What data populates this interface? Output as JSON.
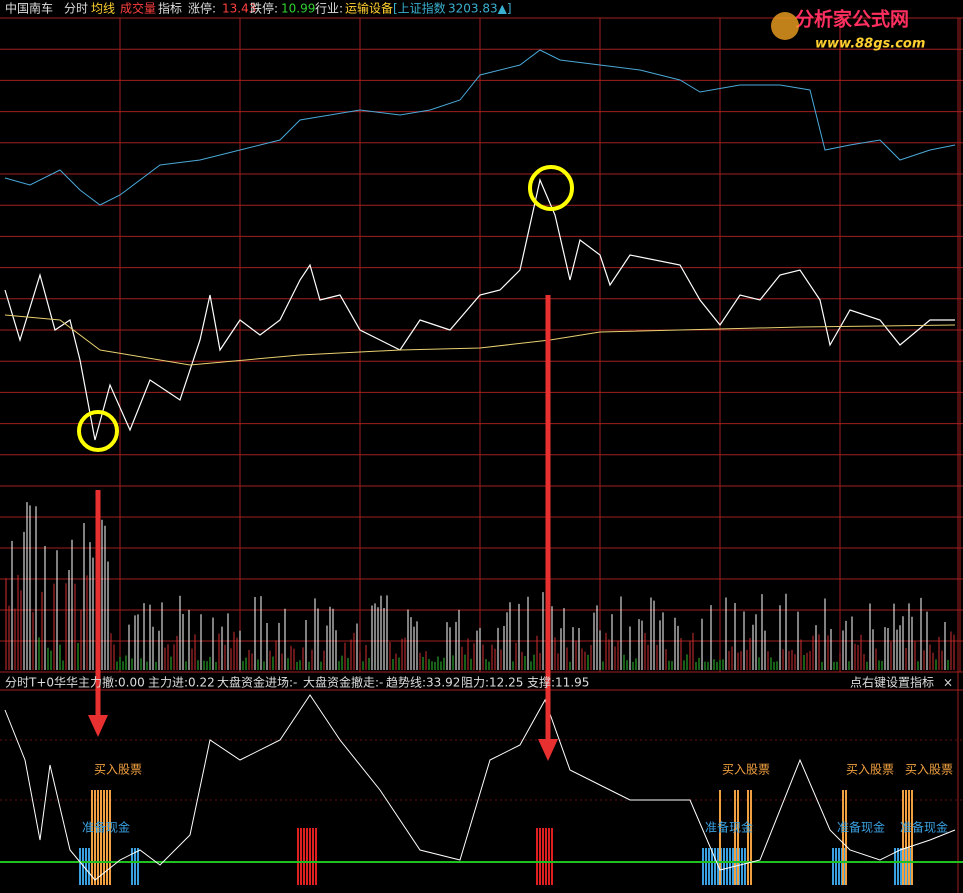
{
  "header": {
    "items": [
      "中国南车",
      "分时",
      "均线",
      "成交量",
      "指标",
      "涨停:",
      "13.43",
      "跌停:",
      "10.99",
      "行业:",
      "运输设备",
      "[上证指数",
      "3203.83▲]"
    ]
  },
  "logo": {
    "title": "分析家公式网",
    "url": "www.88gs.com"
  },
  "indicator": {
    "items": [
      "分时T+0华华",
      "主力撤:0.00",
      "主力进:0.22",
      "大盘资金进场:-",
      "大盘资金撤走:-",
      "趋势线:33.92",
      "阻力:12.25",
      "支撑:11.95"
    ],
    "settings": "点右键设置指标"
  },
  "annotations": {
    "buy": [
      "买入股票",
      "买入股票",
      "买入股票",
      "买入股票"
    ],
    "cash": [
      "准备现金",
      "准备现金",
      "准备现金",
      "准备现金"
    ]
  }
}
